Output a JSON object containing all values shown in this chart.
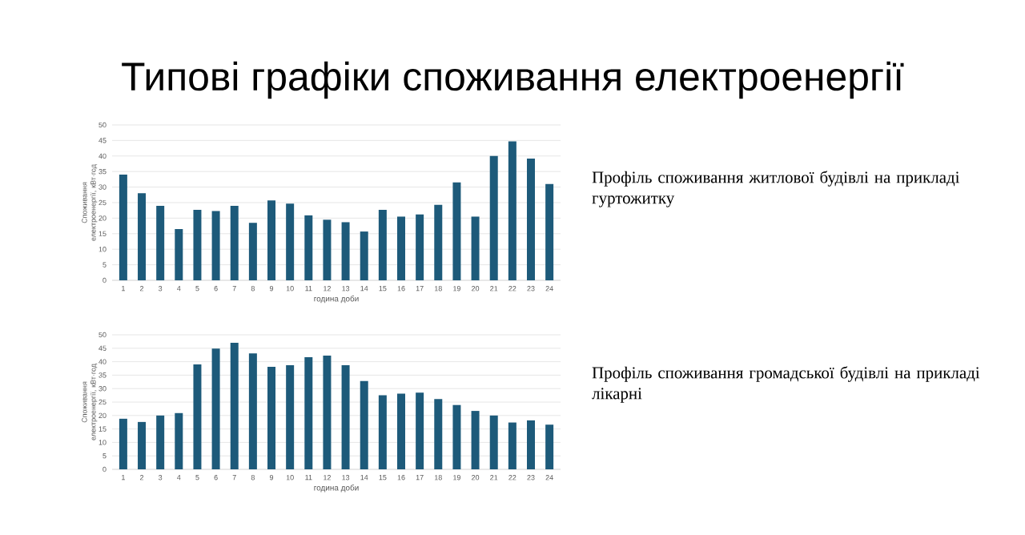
{
  "chart_data": [
    {
      "type": "bar",
      "title": "Типові графіки споживання електроенергії",
      "xlabel": "година доби",
      "ylabel": "Споживання електроенергії, кВт·год",
      "categories": [
        "1",
        "2",
        "3",
        "4",
        "5",
        "6",
        "7",
        "8",
        "9",
        "10",
        "11",
        "12",
        "13",
        "14",
        "15",
        "16",
        "17",
        "18",
        "19",
        "20",
        "21",
        "22",
        "23",
        "24"
      ],
      "values": [
        34,
        28,
        24,
        16.5,
        22.7,
        22.3,
        24,
        18.5,
        25.7,
        24.7,
        20.9,
        19.5,
        18.7,
        15.7,
        22.7,
        20.5,
        21.2,
        24.3,
        31.5,
        20.5,
        40,
        44.7,
        39.2,
        31
      ],
      "color": "#1d5a7a",
      "ylim": [
        0,
        50
      ],
      "yticks": [
        0,
        5,
        10,
        15,
        20,
        25,
        30,
        35,
        40,
        45,
        50
      ],
      "grid": "y",
      "annotations": [
        "Профіль споживання житлової будівлі на прикладі гуртожитку"
      ]
    },
    {
      "type": "bar",
      "xlabel": "година доби",
      "ylabel": "Споживання електроенергії, кВт·год",
      "categories": [
        "1",
        "2",
        "3",
        "4",
        "5",
        "6",
        "7",
        "8",
        "9",
        "10",
        "11",
        "12",
        "13",
        "14",
        "15",
        "16",
        "17",
        "18",
        "19",
        "20",
        "21",
        "22",
        "23",
        "24"
      ],
      "values": [
        18.8,
        17.6,
        20,
        20.9,
        39,
        44.9,
        47,
        43.1,
        38.1,
        38.7,
        41.7,
        42.3,
        38.7,
        32.8,
        27.5,
        28.1,
        28.5,
        26.1,
        23.9,
        21.7,
        20,
        17.4,
        18.2,
        16.6
      ],
      "color": "#1d5a7a",
      "ylim": [
        0,
        50
      ],
      "yticks": [
        0,
        5,
        10,
        15,
        20,
        25,
        30,
        35,
        40,
        45,
        50
      ],
      "grid": "y",
      "annotations": [
        "Профіль споживання громадської будівлі на прикладі лікарні"
      ]
    }
  ]
}
